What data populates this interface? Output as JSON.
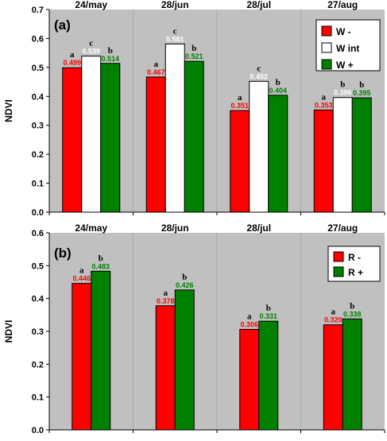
{
  "chart_data": [
    {
      "type": "bar",
      "panel_label": "(a)",
      "ylabel": "NDVI",
      "ylim": [
        0,
        0.7
      ],
      "yticks": [
        "0.0",
        "0.1",
        "0.2",
        "0.3",
        "0.4",
        "0.5",
        "0.6",
        "0.7"
      ],
      "categories": [
        "24/may",
        "28/jun",
        "28/jul",
        "27/aug"
      ],
      "legend_position": "top-right",
      "series": [
        {
          "name": "W -",
          "color": "#ff0000",
          "label_color": "#ff0000",
          "values": [
            0.499,
            0.467,
            0.351,
            0.353
          ],
          "value_labels": [
            "0.499",
            "0.467",
            "0.351",
            "0.353"
          ],
          "letters": [
            "a",
            "a",
            "a",
            "a"
          ]
        },
        {
          "name": "W int",
          "color": "#ffffff",
          "label_color": "#ffffff",
          "values": [
            0.539,
            0.581,
            0.452,
            0.396
          ],
          "value_labels": [
            "0.539",
            "0.581",
            "0.452",
            "0.396"
          ],
          "letters": [
            "c",
            "c",
            "c",
            "b"
          ]
        },
        {
          "name": "W +",
          "color": "#008000",
          "label_color": "#008000",
          "values": [
            0.514,
            0.521,
            0.404,
            0.395
          ],
          "value_labels": [
            "0.514",
            "0.521",
            "0.404",
            "0.395"
          ],
          "letters": [
            "b",
            "b",
            "b",
            "b"
          ]
        }
      ]
    },
    {
      "type": "bar",
      "panel_label": "(b)",
      "ylabel": "NDVI",
      "ylim": [
        0,
        0.6
      ],
      "yticks": [
        "0.0",
        "0.1",
        "0.2",
        "0.3",
        "0.4",
        "0.5",
        "0.6"
      ],
      "categories": [
        "24/may",
        "28/jun",
        "28/jul",
        "27/aug"
      ],
      "legend_position": "top-right",
      "series": [
        {
          "name": "R -",
          "color": "#ff0000",
          "label_color": "#ff0000",
          "values": [
            0.446,
            0.378,
            0.306,
            0.32
          ],
          "value_labels": [
            "0.446",
            "0.378",
            "0.306",
            "0.320"
          ],
          "letters": [
            "a",
            "a",
            "a",
            "a"
          ]
        },
        {
          "name": "R +",
          "color": "#008000",
          "label_color": "#008000",
          "values": [
            0.483,
            0.426,
            0.331,
            0.338
          ],
          "value_labels": [
            "0.483",
            "0.426",
            "0.331",
            "0.338"
          ],
          "letters": [
            "b",
            "b",
            "b",
            "b"
          ]
        }
      ]
    }
  ]
}
